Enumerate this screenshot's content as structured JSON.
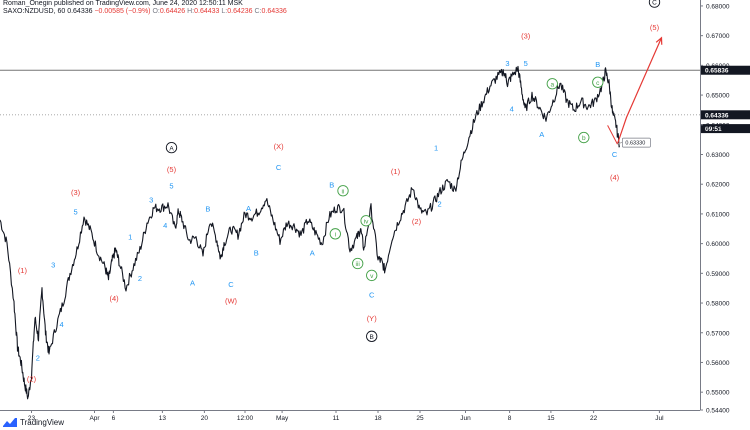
{
  "header": {
    "line1": "Roman_Onegin published on TradingView.com, June 24, 2020 12:50:11 MSK",
    "symbol": "SAXO:NZDUSD, 60",
    "last": "0.64336",
    "change": "−0.00585 (−0.9%)",
    "o_label": "O:",
    "o": "0.64426",
    "h_label": "H:",
    "h": "0.64433",
    "l_label": "L:",
    "l": "0.64236",
    "c_label": "C:",
    "c": "0.64336"
  },
  "footer": {
    "brand": "TradingView"
  },
  "colors": {
    "red": "#e53935",
    "blue": "#2196f3",
    "green": "#43a047",
    "dark": "#131722",
    "price_line": "#9e9e9e"
  },
  "chart_data": {
    "type": "line",
    "ylim": [
      0.544,
      0.682
    ],
    "yticks": [
      "0.68000",
      "0.67000",
      "0.66000",
      "0.65000",
      "0.64000",
      "0.63000",
      "0.62000",
      "0.61000",
      "0.60000",
      "0.59000",
      "0.58000",
      "0.57000",
      "0.56000",
      "0.55000",
      "0.54400"
    ],
    "yticks_values": [
      0.68,
      0.67,
      0.66,
      0.65,
      0.64,
      0.63,
      0.62,
      0.61,
      0.6,
      0.59,
      0.58,
      0.57,
      0.56,
      0.55,
      0.544
    ],
    "xlim": [
      0,
      100
    ],
    "xticks": [
      {
        "label": "23",
        "x": 4.5
      },
      {
        "label": "Apr",
        "x": 13.5
      },
      {
        "label": "6",
        "x": 16.2
      },
      {
        "label": "13",
        "x": 23.2
      },
      {
        "label": "20",
        "x": 29.2
      },
      {
        "label": "12:00",
        "x": 35.0
      },
      {
        "label": "May",
        "x": 40.3
      },
      {
        "label": "11",
        "x": 48.0
      },
      {
        "label": "18",
        "x": 54.0
      },
      {
        "label": "25",
        "x": 60.0
      },
      {
        "label": "Jun",
        "x": 66.5
      },
      {
        "label": "8",
        "x": 72.8
      },
      {
        "label": "15",
        "x": 78.7
      },
      {
        "label": "22",
        "x": 84.8
      },
      {
        "label": "Jul",
        "x": 94.2
      }
    ],
    "series": [
      {
        "x": [
          0,
          1,
          2,
          2.5,
          3,
          3.5,
          4,
          4.5,
          5,
          5.5,
          6,
          6.5,
          7,
          8,
          9,
          10,
          11,
          12,
          13,
          14,
          15,
          15.5,
          16,
          16.5,
          17,
          18,
          19,
          20,
          21,
          22,
          23,
          24,
          25,
          25.5,
          26,
          27,
          28,
          29,
          30,
          31,
          31.5,
          32,
          33,
          34,
          35,
          36,
          37,
          38,
          39,
          40,
          41,
          42,
          43,
          44,
          45,
          46,
          47,
          48,
          49,
          50,
          51,
          51.5,
          52,
          53,
          54,
          54.5,
          55,
          56,
          57,
          58,
          59,
          60,
          61,
          62,
          63,
          64,
          65,
          66,
          67,
          68,
          69,
          70,
          71,
          72,
          72.5,
          73,
          74,
          74.5,
          75,
          76,
          77,
          78,
          79,
          80,
          81,
          82,
          83,
          84,
          85,
          86,
          86.5,
          87,
          87.5,
          88,
          88.5
        ],
        "y": [
          0.608,
          0.6,
          0.58,
          0.565,
          0.56,
          0.553,
          0.548,
          0.556,
          0.575,
          0.568,
          0.585,
          0.57,
          0.563,
          0.572,
          0.58,
          0.59,
          0.598,
          0.609,
          0.604,
          0.597,
          0.592,
          0.588,
          0.594,
          0.598,
          0.594,
          0.585,
          0.592,
          0.598,
          0.607,
          0.612,
          0.612,
          0.613,
          0.605,
          0.611,
          0.608,
          0.601,
          0.602,
          0.596,
          0.608,
          0.601,
          0.595,
          0.6,
          0.605,
          0.603,
          0.61,
          0.609,
          0.611,
          0.615,
          0.608,
          0.601,
          0.607,
          0.606,
          0.603,
          0.608,
          0.604,
          0.6,
          0.609,
          0.612,
          0.612,
          0.598,
          0.602,
          0.605,
          0.598,
          0.612,
          0.595,
          0.594,
          0.591,
          0.602,
          0.608,
          0.613,
          0.619,
          0.611,
          0.61,
          0.614,
          0.618,
          0.621,
          0.618,
          0.628,
          0.636,
          0.643,
          0.648,
          0.653,
          0.656,
          0.658,
          0.654,
          0.656,
          0.659,
          0.652,
          0.645,
          0.65,
          0.646,
          0.642,
          0.648,
          0.654,
          0.648,
          0.645,
          0.648,
          0.646,
          0.648,
          0.653,
          0.658,
          0.654,
          0.644,
          0.64,
          0.633
        ]
      }
    ],
    "levels": [
      {
        "value": 0.65836,
        "label": "0.65836",
        "style": "solid"
      },
      {
        "value": 0.64336,
        "label": "0.64336",
        "style": "dotted"
      }
    ],
    "countdown": {
      "value": 0.6404,
      "label": "09:51"
    },
    "price_callout": {
      "label": "0.63330",
      "x": 88.2,
      "y": 0.6335
    },
    "projection": [
      {
        "x": 88.2,
        "y": 0.6335
      },
      {
        "x": 89.5,
        "y": 0.6425
      },
      {
        "x": 94.5,
        "y": 0.6693
      }
    ],
    "wave_labels": [
      {
        "text": "(1)",
        "x": 3.2,
        "y": 0.591,
        "color": "red",
        "shape": "text"
      },
      {
        "text": "(2)",
        "x": 4.5,
        "y": 0.5545,
        "color": "red",
        "shape": "text"
      },
      {
        "text": "2",
        "x": 5.4,
        "y": 0.5615,
        "color": "blue",
        "shape": "text"
      },
      {
        "text": "(3)",
        "x": 10.8,
        "y": 0.6172,
        "color": "red",
        "shape": "text"
      },
      {
        "text": "5",
        "x": 10.8,
        "y": 0.6107,
        "color": "blue",
        "shape": "text"
      },
      {
        "text": "3",
        "x": 7.6,
        "y": 0.5928,
        "color": "blue",
        "shape": "text"
      },
      {
        "text": "4",
        "x": 8.8,
        "y": 0.5728,
        "color": "blue",
        "shape": "text"
      },
      {
        "text": "(4)",
        "x": 16.3,
        "y": 0.5815,
        "color": "red",
        "shape": "text"
      },
      {
        "text": "1",
        "x": 18.6,
        "y": 0.6023,
        "color": "blue",
        "shape": "text"
      },
      {
        "text": "2",
        "x": 20.0,
        "y": 0.5883,
        "color": "blue",
        "shape": "text"
      },
      {
        "text": "3",
        "x": 21.6,
        "y": 0.6148,
        "color": "blue",
        "shape": "text"
      },
      {
        "text": "4",
        "x": 23.6,
        "y": 0.6062,
        "color": "blue",
        "shape": "text"
      },
      {
        "text": "5",
        "x": 24.5,
        "y": 0.6194,
        "color": "blue",
        "shape": "text"
      },
      {
        "text": "(5)",
        "x": 24.5,
        "y": 0.6249,
        "color": "red",
        "shape": "text"
      },
      {
        "text": "A",
        "x": 24.5,
        "y": 0.6323,
        "color": "dark",
        "shape": "circle"
      },
      {
        "text": "A",
        "x": 27.5,
        "y": 0.5868,
        "color": "blue",
        "shape": "text"
      },
      {
        "text": "B",
        "x": 29.7,
        "y": 0.6117,
        "color": "blue",
        "shape": "text"
      },
      {
        "text": "C",
        "x": 33.0,
        "y": 0.5863,
        "color": "blue",
        "shape": "text"
      },
      {
        "text": "(W)",
        "x": 33.0,
        "y": 0.5808,
        "color": "red",
        "shape": "text"
      },
      {
        "text": "A",
        "x": 35.5,
        "y": 0.6118,
        "color": "blue",
        "shape": "text"
      },
      {
        "text": "B",
        "x": 36.6,
        "y": 0.5968,
        "color": "blue",
        "shape": "text"
      },
      {
        "text": "(X)",
        "x": 39.8,
        "y": 0.6327,
        "color": "red",
        "shape": "text"
      },
      {
        "text": "C",
        "x": 39.8,
        "y": 0.6257,
        "color": "blue",
        "shape": "text"
      },
      {
        "text": "A",
        "x": 44.6,
        "y": 0.5968,
        "color": "blue",
        "shape": "text"
      },
      {
        "text": "B",
        "x": 47.4,
        "y": 0.6197,
        "color": "blue",
        "shape": "text"
      },
      {
        "text": "ii",
        "x": 49.0,
        "y": 0.6178,
        "color": "green",
        "shape": "circle"
      },
      {
        "text": "i",
        "x": 47.9,
        "y": 0.6033,
        "color": "green",
        "shape": "circle"
      },
      {
        "text": "iii",
        "x": 51.1,
        "y": 0.5933,
        "color": "green",
        "shape": "circle"
      },
      {
        "text": "iv",
        "x": 52.3,
        "y": 0.6077,
        "color": "green",
        "shape": "circle"
      },
      {
        "text": "v",
        "x": 53.1,
        "y": 0.5893,
        "color": "green",
        "shape": "circle"
      },
      {
        "text": "C",
        "x": 53.1,
        "y": 0.5828,
        "color": "blue",
        "shape": "text"
      },
      {
        "text": "(Y)",
        "x": 53.1,
        "y": 0.5748,
        "color": "red",
        "shape": "text"
      },
      {
        "text": "B",
        "x": 53.1,
        "y": 0.5688,
        "color": "dark",
        "shape": "circle"
      },
      {
        "text": "(1)",
        "x": 56.5,
        "y": 0.6243,
        "color": "red",
        "shape": "text"
      },
      {
        "text": "(2)",
        "x": 59.5,
        "y": 0.6075,
        "color": "red",
        "shape": "text"
      },
      {
        "text": "1",
        "x": 62.3,
        "y": 0.6323,
        "color": "blue",
        "shape": "text"
      },
      {
        "text": "2",
        "x": 62.8,
        "y": 0.6133,
        "color": "blue",
        "shape": "text"
      },
      {
        "text": "3",
        "x": 72.5,
        "y": 0.6606,
        "color": "blue",
        "shape": "text"
      },
      {
        "text": "(3)",
        "x": 75.1,
        "y": 0.6699,
        "color": "red",
        "shape": "text"
      },
      {
        "text": "5",
        "x": 75.1,
        "y": 0.6606,
        "color": "blue",
        "shape": "text"
      },
      {
        "text": "4",
        "x": 73.1,
        "y": 0.6453,
        "color": "blue",
        "shape": "text"
      },
      {
        "text": "A",
        "x": 77.4,
        "y": 0.6368,
        "color": "blue",
        "shape": "text"
      },
      {
        "text": "a",
        "x": 78.9,
        "y": 0.6538,
        "color": "green",
        "shape": "circle"
      },
      {
        "text": "b",
        "x": 83.4,
        "y": 0.6357,
        "color": "green",
        "shape": "circle"
      },
      {
        "text": "B",
        "x": 85.4,
        "y": 0.6603,
        "color": "blue",
        "shape": "text"
      },
      {
        "text": "c",
        "x": 85.4,
        "y": 0.6543,
        "color": "green",
        "shape": "circle"
      },
      {
        "text": "C",
        "x": 87.8,
        "y": 0.6301,
        "color": "blue",
        "shape": "text"
      },
      {
        "text": "(4)",
        "x": 87.8,
        "y": 0.6223,
        "color": "red",
        "shape": "text"
      },
      {
        "text": "(5)",
        "x": 93.5,
        "y": 0.6728,
        "color": "red",
        "shape": "text"
      },
      {
        "text": "C",
        "x": 93.5,
        "y": 0.6813,
        "color": "dark",
        "shape": "circle"
      }
    ]
  }
}
